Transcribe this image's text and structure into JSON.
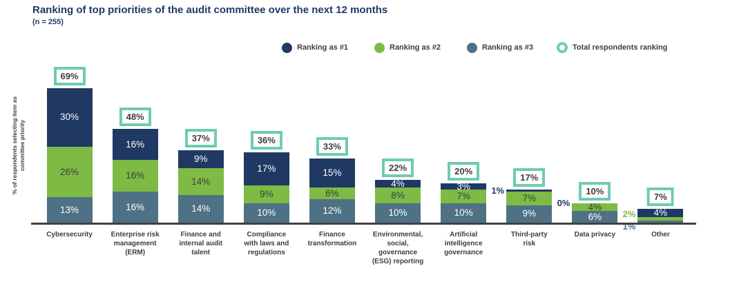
{
  "title": "Ranking of top priorities of the audit committee over the next 12 months",
  "sample_size": "(n = 255)",
  "y_axis_label_lines": [
    "% of respondents selecting item as",
    "committee priority"
  ],
  "legend": [
    {
      "label": "Ranking as #1",
      "color": "#1f3864",
      "shape": "filled-circle"
    },
    {
      "label": "Ranking as #2",
      "color": "#7dbb44",
      "shape": "filled-circle"
    },
    {
      "label": "Ranking as #3",
      "color": "#4e7186",
      "shape": "filled-circle"
    },
    {
      "label": "Total respondents ranking",
      "color": "#6ecbb4",
      "shape": "ring-circle"
    }
  ],
  "chart_data": {
    "type": "bar",
    "stacked": true,
    "unit": "%",
    "grid": false,
    "legend_position": "top-right",
    "ylim": [
      0,
      75
    ],
    "title": "Ranking of top priorities of the audit committee over the next 12 months",
    "subtitle": "(n = 255)",
    "ylabel": "% of respondents selecting item as committee priority",
    "xlabel": "",
    "categories": [
      "Cybersecurity",
      "Enterprise risk management (ERM)",
      "Finance and internal audit talent",
      "Compliance with laws and regulations",
      "Finance transformation",
      "Environmental, social, governance (ESG) reporting",
      "Artificial intelligence governance",
      "Third-party risk",
      "Data privacy",
      "Other"
    ],
    "category_lines": [
      [
        "Cybersecurity"
      ],
      [
        "Enterprise risk",
        "management",
        "(ERM)"
      ],
      [
        "Finance and",
        "internal audit",
        "talent"
      ],
      [
        "Compliance",
        "with laws and",
        "regulations"
      ],
      [
        "Finance",
        "transformation"
      ],
      [
        "Environmental,",
        "social,",
        "governance",
        "(ESG) reporting"
      ],
      [
        "Artificial",
        "intelligence",
        "governance"
      ],
      [
        "Third-party",
        "risk"
      ],
      [
        "Data privacy"
      ],
      [
        "Other"
      ]
    ],
    "series": [
      {
        "name": "Ranking as #1",
        "color": "#1f3864",
        "values": [
          30,
          16,
          9,
          17,
          15,
          4,
          3,
          1,
          0,
          4
        ]
      },
      {
        "name": "Ranking as #2",
        "color": "#7dbb44",
        "values": [
          26,
          16,
          14,
          9,
          6,
          8,
          7,
          7,
          4,
          2
        ]
      },
      {
        "name": "Ranking as #3",
        "color": "#4e7186",
        "values": [
          13,
          16,
          14,
          10,
          12,
          10,
          10,
          9,
          6,
          1
        ]
      }
    ],
    "totals": {
      "name": "Total respondents ranking",
      "color": "#6ecbb4",
      "values": [
        69,
        48,
        37,
        36,
        33,
        22,
        20,
        17,
        10,
        7
      ]
    }
  }
}
